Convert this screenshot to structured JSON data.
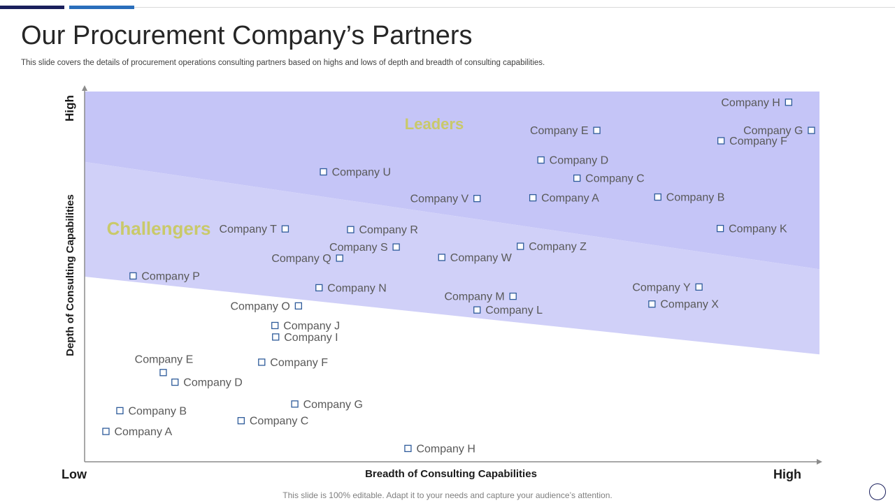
{
  "title": "Our Procurement Company’s Partners",
  "subtitle": "This slide covers the details of procurement operations consulting partners based on highs and lows of depth and breadth of consulting capabilities.",
  "footer": "This slide is 100% editable. Adapt it to your needs and capture your audience’s attention.",
  "colors": {
    "leaders_band": "#c5c5f7",
    "challengers_band": "#d0d0f8",
    "marker": "#2e5b9a",
    "accent_dark": "#1a1f5c",
    "accent_blue": "#2a6ebb"
  },
  "chart_data": {
    "type": "scatter",
    "xlabel": "Breadth of Consulting Capabilities",
    "ylabel": "Depth of Consulting Capabilities",
    "x_low_label": "Low",
    "x_high_label": "High",
    "y_high_label": "High",
    "xlim": [
      0,
      100
    ],
    "ylim": [
      0,
      100
    ],
    "regions": [
      {
        "name": "Leaders",
        "boundary_left": 81,
        "boundary_right": 52
      },
      {
        "name": "Challengers",
        "boundary_left": 50,
        "boundary_right": 29
      }
    ],
    "points": [
      {
        "label": "Company H",
        "x": 95.8,
        "y": 97.1,
        "label_side": "left"
      },
      {
        "label": "Company E",
        "x": 69.7,
        "y": 89.5,
        "label_side": "left"
      },
      {
        "label": "Company G",
        "x": 98.9,
        "y": 89.5,
        "label_side": "left"
      },
      {
        "label": "Company F",
        "x": 86.6,
        "y": 86.7,
        "label_side": "right"
      },
      {
        "label": "Company D",
        "x": 62.1,
        "y": 81.5,
        "label_side": "right"
      },
      {
        "label": "Company U",
        "x": 32.5,
        "y": 78.3,
        "label_side": "right"
      },
      {
        "label": "Company C",
        "x": 67.0,
        "y": 76.6,
        "label_side": "right"
      },
      {
        "label": "Company V",
        "x": 53.4,
        "y": 71.1,
        "label_side": "left"
      },
      {
        "label": "Company A",
        "x": 61.0,
        "y": 71.3,
        "label_side": "right"
      },
      {
        "label": "Company B",
        "x": 78.0,
        "y": 71.5,
        "label_side": "right"
      },
      {
        "label": "Company T",
        "x": 27.3,
        "y": 62.9,
        "label_side": "left"
      },
      {
        "label": "Company R",
        "x": 36.2,
        "y": 62.7,
        "label_side": "right"
      },
      {
        "label": "Company K",
        "x": 86.5,
        "y": 63.0,
        "label_side": "right"
      },
      {
        "label": "Company S",
        "x": 42.4,
        "y": 58.0,
        "label_side": "left"
      },
      {
        "label": "Company Z",
        "x": 59.3,
        "y": 58.2,
        "label_side": "right"
      },
      {
        "label": "Company Q",
        "x": 34.7,
        "y": 55.0,
        "label_side": "left"
      },
      {
        "label": "Company W",
        "x": 48.6,
        "y": 55.2,
        "label_side": "right"
      },
      {
        "label": "Company P",
        "x": 6.6,
        "y": 50.2,
        "label_side": "right"
      },
      {
        "label": "Company N",
        "x": 31.9,
        "y": 47.0,
        "label_side": "right"
      },
      {
        "label": "Company Y",
        "x": 83.6,
        "y": 47.2,
        "label_side": "left"
      },
      {
        "label": "Company M",
        "x": 58.3,
        "y": 44.7,
        "label_side": "left"
      },
      {
        "label": "Company X",
        "x": 77.2,
        "y": 42.6,
        "label_side": "right"
      },
      {
        "label": "Company O",
        "x": 29.1,
        "y": 42.1,
        "label_side": "left"
      },
      {
        "label": "Company L",
        "x": 53.4,
        "y": 41.0,
        "label_side": "right"
      },
      {
        "label": "Company J",
        "x": 25.9,
        "y": 36.8,
        "label_side": "right"
      },
      {
        "label": "Company I",
        "x": 26.0,
        "y": 33.7,
        "label_side": "right"
      },
      {
        "label": "Company E",
        "x": 10.7,
        "y": 24.1,
        "label_side": "above"
      },
      {
        "label": "Company F",
        "x": 24.1,
        "y": 26.9,
        "label_side": "right"
      },
      {
        "label": "Company D",
        "x": 12.3,
        "y": 21.5,
        "label_side": "right"
      },
      {
        "label": "Company G",
        "x": 28.6,
        "y": 15.6,
        "label_side": "right"
      },
      {
        "label": "Company B",
        "x": 4.8,
        "y": 13.8,
        "label_side": "right"
      },
      {
        "label": "Company C",
        "x": 21.3,
        "y": 11.1,
        "label_side": "right"
      },
      {
        "label": "Company A",
        "x": 2.9,
        "y": 8.2,
        "label_side": "right"
      },
      {
        "label": "Company H",
        "x": 44.0,
        "y": 3.6,
        "label_side": "right"
      }
    ]
  }
}
